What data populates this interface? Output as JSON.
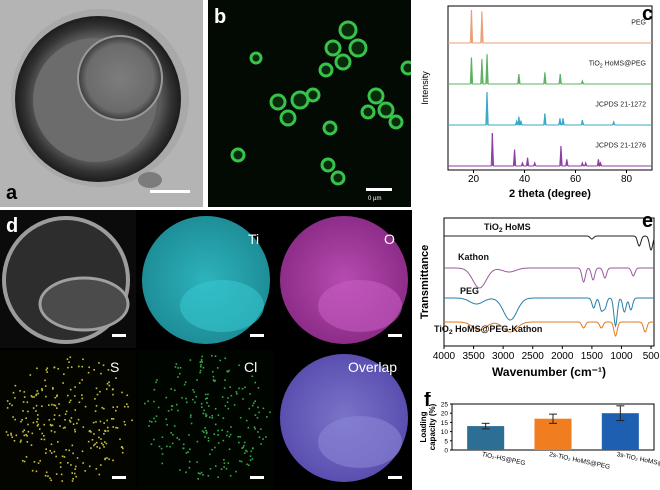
{
  "panels": {
    "a": {
      "label": "a"
    },
    "b": {
      "label": "b",
      "scale_text": "0 µm"
    },
    "c": {
      "label": "c"
    },
    "d": {
      "label": "d",
      "maps": {
        "ti": "Ti",
        "o": "O",
        "s": "S",
        "cl": "Cl",
        "overlap": "Overlap"
      }
    },
    "e": {
      "label": "e"
    },
    "f": {
      "label": "f"
    }
  },
  "chart_data": [
    {
      "type": "line",
      "panel": "c",
      "xlabel": "2 theta (degree)",
      "ylabel": "Intensity",
      "xlim": [
        10,
        90
      ],
      "xticks": [
        "20",
        "40",
        "60",
        "80"
      ],
      "series": [
        {
          "name": "PEG",
          "color": "#e9a07a",
          "peaks": [
            [
              19.2,
              1.0
            ],
            [
              23.3,
              0.95
            ]
          ]
        },
        {
          "name": "TiO2 HoMS@PEG",
          "color": "#5bb162",
          "peaks": [
            [
              19.2,
              0.8
            ],
            [
              23.3,
              0.75
            ],
            [
              25.3,
              0.9
            ],
            [
              37.8,
              0.3
            ],
            [
              48.0,
              0.35
            ],
            [
              54.0,
              0.3
            ],
            [
              62.7,
              0.1
            ]
          ]
        },
        {
          "name": "JCPDS 21-1272",
          "color": "#3aa8c8",
          "peaks": [
            [
              25.3,
              1.0
            ],
            [
              36.9,
              0.12
            ],
            [
              37.8,
              0.25
            ],
            [
              38.6,
              0.12
            ],
            [
              48.0,
              0.35
            ],
            [
              53.9,
              0.2
            ],
            [
              55.1,
              0.2
            ],
            [
              62.7,
              0.15
            ],
            [
              75.0,
              0.1
            ]
          ]
        },
        {
          "name": "JCPDS 21-1276",
          "color": "#8e3ea7",
          "peaks": [
            [
              27.4,
              1.0
            ],
            [
              36.1,
              0.5
            ],
            [
              39.2,
              0.1
            ],
            [
              41.2,
              0.25
            ],
            [
              44.0,
              0.1
            ],
            [
              54.3,
              0.6
            ],
            [
              56.6,
              0.2
            ],
            [
              62.7,
              0.1
            ],
            [
              64.0,
              0.1
            ],
            [
              69.0,
              0.2
            ],
            [
              69.8,
              0.1
            ]
          ]
        }
      ]
    },
    {
      "type": "line",
      "panel": "e",
      "xlabel": "Wavenumber (cm⁻¹)",
      "ylabel": "Transmittance",
      "xlim": [
        4000,
        450
      ],
      "xticks": [
        "4000",
        "3500",
        "3000",
        "2500",
        "2000",
        "1500",
        "1000",
        "500"
      ],
      "series": [
        {
          "name": "TiO₂ HoMS",
          "color": "#222222"
        },
        {
          "name": "Kathon",
          "color": "#9a5a9c"
        },
        {
          "name": "PEG",
          "color": "#2a7ea8"
        },
        {
          "name": "TiO₂ HoMS@PEG-Kathon",
          "color": "#e07a20"
        }
      ]
    },
    {
      "type": "bar",
      "panel": "f",
      "ylabel": "Loading\ncapacity (%)",
      "ylim": [
        0,
        25
      ],
      "yticks": [
        "0",
        "5",
        "10",
        "15",
        "20",
        "25"
      ],
      "categories": [
        "TiO₂-HS@PEG",
        "2s-TiO₂ HoMS@PEG",
        "3s-TiO₂ HoMS@PEG"
      ],
      "values": [
        13.0,
        17.0,
        20.0
      ],
      "errors": [
        1.5,
        2.5,
        4.0
      ],
      "colors": [
        "#2d6e94",
        "#f07d1f",
        "#1f5fb2"
      ]
    }
  ]
}
